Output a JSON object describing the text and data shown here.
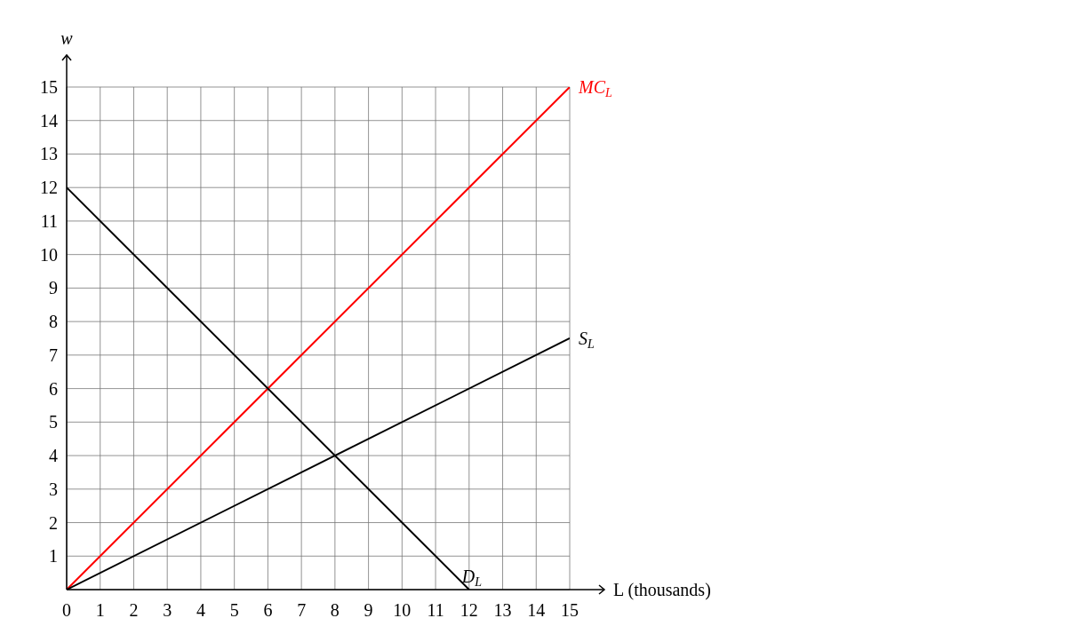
{
  "chart_data": {
    "type": "line",
    "xlabel": "L (thousands)",
    "ylabel": "w",
    "xlim": [
      0,
      15
    ],
    "ylim": [
      0,
      15
    ],
    "xticks": [
      0,
      1,
      2,
      3,
      4,
      5,
      6,
      7,
      8,
      9,
      10,
      11,
      12,
      13,
      14,
      15
    ],
    "yticks": [
      1,
      2,
      3,
      4,
      5,
      6,
      7,
      8,
      9,
      10,
      11,
      12,
      13,
      14,
      15
    ],
    "grid": true,
    "legend": false,
    "marker": "none",
    "line_style": "solid",
    "series": [
      {
        "name": "MC$_{L}$",
        "color": "#ff0000",
        "x": [
          0,
          15
        ],
        "values": [
          0,
          15
        ]
      },
      {
        "name": "S$_{L}$",
        "color": "#000000",
        "x": [
          0,
          15
        ],
        "values": [
          0,
          7.5
        ]
      },
      {
        "name": "D$_{L}$",
        "color": "#000000",
        "x": [
          0,
          12
        ],
        "values": [
          12,
          0
        ]
      }
    ]
  }
}
